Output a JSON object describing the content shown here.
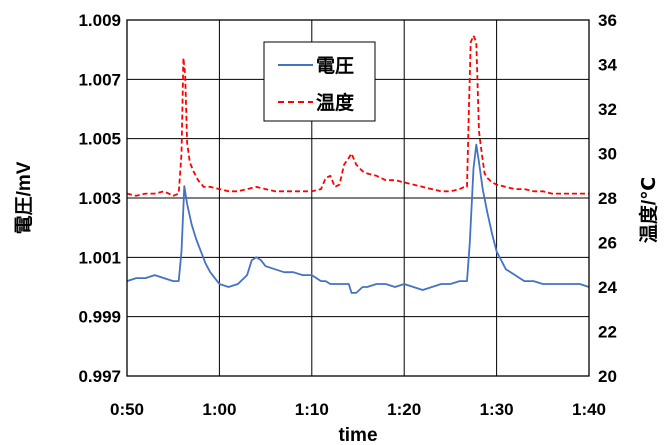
{
  "chart_data": {
    "type": "line",
    "title": "",
    "xlabel": "time",
    "ylabel_left": "電圧/mV",
    "ylabel_right": "温度/℃",
    "x_ticks": [
      "0:50",
      "1:00",
      "1:10",
      "1:20",
      "1:30",
      "1:40"
    ],
    "y_left_ticks": [
      "1.009",
      "1.007",
      "1.005",
      "1.003",
      "1.001",
      "0.999",
      "0.997"
    ],
    "y_right_ticks": [
      "36",
      "34",
      "32",
      "30",
      "28",
      "26",
      "24",
      "22",
      "20"
    ],
    "xlim_minutes": [
      50,
      100
    ],
    "ylim_left": [
      0.997,
      1.009
    ],
    "ylim_right": [
      20,
      36
    ],
    "grid": true,
    "legend_position": "top-center",
    "series": [
      {
        "name": "電圧",
        "axis": "left",
        "color": "#4472C4",
        "style": "solid",
        "x_minutes": [
          50,
          51,
          52,
          53,
          54,
          55,
          55.6,
          55.9,
          56.2,
          56.5,
          57,
          57.5,
          58,
          58.5,
          59,
          59.5,
          60,
          61,
          62,
          63,
          63.5,
          64,
          64.5,
          65,
          66,
          67,
          68,
          69,
          70,
          71,
          71.5,
          72,
          73,
          74,
          74.3,
          74.8,
          75.5,
          76,
          77,
          78,
          79,
          80,
          81,
          82,
          83,
          84,
          85,
          86,
          86.8,
          87.1,
          87.5,
          87.8,
          88.1,
          88.5,
          89,
          89.5,
          90,
          91,
          92,
          93,
          94,
          95,
          96,
          97,
          98,
          99,
          100
        ],
        "values": [
          1.0002,
          1.0003,
          1.0003,
          1.0004,
          1.0003,
          1.0002,
          1.0002,
          1.0012,
          1.0034,
          1.0028,
          1.0021,
          1.0016,
          1.0012,
          1.0008,
          1.0005,
          1.0003,
          1.0001,
          1.0,
          1.0001,
          1.0004,
          1.0009,
          1.001,
          1.0009,
          1.0007,
          1.0006,
          1.0005,
          1.0005,
          1.0004,
          1.0004,
          1.0002,
          1.0002,
          1.0001,
          1.0001,
          1.0001,
          0.9998,
          0.9998,
          1.0,
          1.0,
          1.0001,
          1.0001,
          1.0,
          1.0001,
          1.0,
          0.9999,
          1.0,
          1.0001,
          1.0001,
          1.0002,
          1.0002,
          1.0015,
          1.004,
          1.0048,
          1.0042,
          1.0033,
          1.0025,
          1.0018,
          1.0012,
          1.0006,
          1.0004,
          1.0002,
          1.0002,
          1.0001,
          1.0001,
          1.0001,
          1.0001,
          1.0001,
          1.0
        ]
      },
      {
        "name": "温度",
        "axis": "right",
        "color": "#FF0000",
        "style": "dashed",
        "x_minutes": [
          50,
          51,
          52,
          53,
          54,
          55,
          55.6,
          55.9,
          56.1,
          56.3,
          56.5,
          56.8,
          57.2,
          57.7,
          58.3,
          59,
          60,
          61,
          62,
          63,
          64,
          65,
          66,
          67,
          68,
          69,
          70,
          71,
          71.5,
          72,
          72.5,
          73,
          73.5,
          74,
          74.3,
          74.8,
          75.5,
          76,
          77,
          78,
          79,
          80,
          81,
          82,
          83,
          84,
          85,
          86,
          86.5,
          86.8,
          87,
          87.2,
          87.5,
          87.8,
          88.1,
          88.4,
          88.7,
          89,
          89.5,
          90,
          91,
          92,
          93,
          94,
          95,
          96,
          97,
          98,
          99,
          100
        ],
        "values": [
          28.2,
          28.1,
          28.2,
          28.2,
          28.3,
          28.1,
          28.2,
          30.0,
          34.3,
          33.5,
          30.5,
          29.6,
          29.2,
          28.8,
          28.5,
          28.5,
          28.4,
          28.3,
          28.3,
          28.4,
          28.5,
          28.4,
          28.3,
          28.3,
          28.3,
          28.3,
          28.3,
          28.4,
          28.9,
          29.0,
          28.5,
          28.6,
          29.5,
          29.8,
          30.0,
          29.5,
          29.2,
          29.1,
          29.0,
          28.8,
          28.8,
          28.7,
          28.6,
          28.5,
          28.4,
          28.3,
          28.3,
          28.4,
          28.5,
          28.5,
          32.0,
          35.0,
          35.3,
          35.0,
          31.0,
          30.0,
          29.1,
          28.9,
          28.7,
          28.6,
          28.5,
          28.4,
          28.4,
          28.3,
          28.3,
          28.2,
          28.2,
          28.2,
          28.2,
          28.2
        ]
      }
    ]
  }
}
